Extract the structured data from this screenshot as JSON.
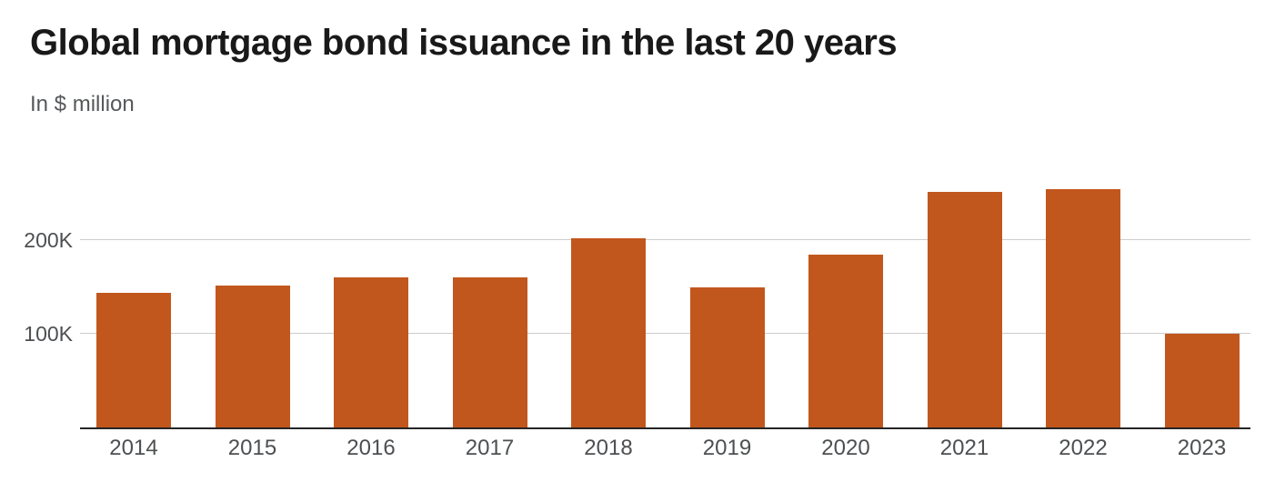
{
  "header": {
    "title": "Global mortgage bond issuance in the last 20 years",
    "subtitle": "In $ million"
  },
  "chart_data": {
    "type": "bar",
    "title": "Global mortgage bond issuance in the last 20 years",
    "subtitle": "In $ million",
    "xlabel": "",
    "ylabel": "",
    "categories": [
      "2014",
      "2015",
      "2016",
      "2017",
      "2018",
      "2019",
      "2020",
      "2021",
      "2022",
      "2023"
    ],
    "values": [
      144000,
      152000,
      160000,
      160000,
      202000,
      150000,
      184000,
      251000,
      254000,
      100000
    ],
    "ylim": [
      0,
      280000
    ],
    "yticks": [
      {
        "value": 100000,
        "label": "100K"
      },
      {
        "value": 200000,
        "label": "200K"
      }
    ],
    "grid": true,
    "legend": false,
    "colors": {
      "bar": "#c2571d",
      "gridline": "#cccccc",
      "axis_line": "#262626",
      "title": "#191919",
      "subtitle": "#56585a",
      "tick_label": "#4d4f51"
    }
  }
}
